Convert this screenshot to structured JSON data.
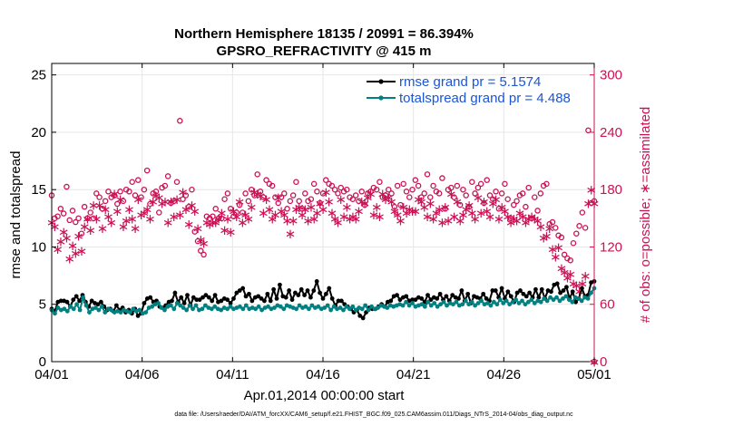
{
  "chart_data": {
    "type": "line",
    "title": "Northern Hemisphere 18135 / 20991 = 86.394%",
    "subtitle": "GPSRO_REFRACTIVITY @ 415 m",
    "xlabel": "Apr.01,2014 00:00:00 start",
    "ylabel_left": "rmse and totalspread",
    "ylabel_right": "# of obs: o=possible; ∗=assimilated",
    "x_ticks": [
      "04/01",
      "04/06",
      "04/11",
      "04/16",
      "04/21",
      "04/26",
      "05/01"
    ],
    "y_ticks_left": [
      "0",
      "5",
      "10",
      "15",
      "20",
      "25"
    ],
    "y_ticks_right": [
      "0",
      "60",
      "120",
      "180",
      "240",
      "300"
    ],
    "xlim_days": [
      0,
      30
    ],
    "ylim_left": [
      0,
      26
    ],
    "ylim_right": [
      0,
      312
    ],
    "grid": true,
    "legend_position": "top-right",
    "footer": "data file: /Users/raeder/DAI/ATM_forcXX/CAM6_setup/f.e21.FHIST_BGC.f09_025.CAM6assim.011/Diags_NTrS_2014-04/obs_diag_output.nc",
    "series": [
      {
        "name": "rmse grand pr = 5.1574",
        "color": "#000000",
        "axis": "left",
        "values": [
          4.6,
          4.4,
          5.2,
          5.3,
          5.3,
          5.2,
          4.8,
          5.4,
          5.7,
          5.3,
          5.8,
          5.2,
          4.8,
          5.3,
          5.1,
          5.0,
          5.2,
          4.8,
          4.5,
          4.6,
          4.4,
          4.9,
          4.5,
          4.7,
          4.3,
          4.5,
          4.2,
          4.6,
          4.0,
          4.2,
          5.1,
          5.5,
          5.6,
          5.2,
          5.3,
          4.8,
          4.7,
          4.9,
          5.2,
          5.3,
          6.0,
          5.2,
          5.6,
          5.1,
          5.8,
          4.9,
          5.6,
          5.4,
          5.4,
          5.6,
          5.8,
          5.6,
          5.3,
          5.8,
          5.2,
          5.3,
          5.5,
          5.4,
          5.1,
          5.5,
          6.0,
          6.2,
          6.4,
          5.7,
          5.9,
          5.3,
          5.6,
          5.7,
          5.5,
          5.3,
          5.9,
          5.3,
          6.3,
          5.5,
          6.7,
          5.7,
          5.6,
          6.2,
          5.4,
          6.0,
          5.8,
          6.3,
          5.8,
          6.2,
          5.6,
          6.2,
          7.0,
          6.0,
          5.5,
          5.9,
          6.4,
          5.5,
          4.9,
          5.3,
          5.3,
          5.0,
          4.8,
          4.6,
          4.3,
          4.5,
          4.0,
          3.8,
          4.3,
          4.7,
          4.6,
          4.6,
          4.8,
          5.0,
          4.8,
          5.2,
          5.3,
          5.7,
          5.8,
          5.4,
          5.6,
          5.7,
          5.3,
          5.4,
          5.4,
          5.6,
          5.5,
          5.2,
          5.8,
          5.4,
          5.6,
          5.5,
          5.9,
          5.4,
          5.7,
          5.3,
          5.8,
          5.6,
          5.5,
          6.2,
          5.3,
          5.9,
          5.1,
          5.7,
          5.6,
          5.5,
          5.9,
          5.5,
          5.3,
          6.2,
          6.2,
          5.6,
          6.4,
          5.5,
          6.1,
          5.7,
          5.2,
          6.0,
          6.2,
          5.9,
          5.7,
          6.0,
          5.6,
          6.3,
          5.6,
          6.3,
          5.5,
          6.2,
          6.1,
          6.7,
          6.8,
          6.0,
          6.2,
          6.5,
          5.5,
          6.1,
          5.2,
          5.5,
          6.4,
          5.7,
          5.8,
          6.9,
          7.0
        ]
      },
      {
        "name": "totalspread grand pr = 4.488",
        "color": "#008080",
        "axis": "left",
        "values": [
          4.5,
          4.2,
          4.7,
          4.5,
          4.6,
          4.4,
          4.8,
          4.6,
          5.0,
          4.5,
          5.6,
          4.9,
          4.3,
          4.6,
          4.7,
          4.5,
          4.8,
          4.3,
          4.6,
          4.5,
          4.3,
          4.4,
          4.3,
          4.5,
          4.4,
          4.3,
          4.6,
          4.4,
          4.5,
          4.2,
          4.3,
          4.7,
          4.8,
          5.0,
          5.1,
          4.7,
          4.5,
          4.8,
          4.9,
          4.6,
          5.1,
          4.9,
          4.7,
          4.5,
          4.9,
          4.6,
          4.9,
          4.5,
          4.6,
          4.9,
          4.7,
          4.6,
          4.8,
          4.6,
          4.5,
          4.7,
          4.6,
          4.8,
          4.6,
          4.7,
          4.8,
          4.6,
          4.9,
          4.6,
          4.7,
          4.6,
          4.8,
          4.5,
          4.7,
          4.8,
          4.6,
          4.7,
          4.9,
          4.8,
          4.6,
          4.9,
          4.8,
          4.7,
          4.6,
          4.9,
          4.7,
          4.8,
          4.6,
          4.9,
          4.7,
          4.8,
          4.6,
          4.7,
          4.9,
          4.5,
          4.8,
          4.6,
          4.7,
          4.5,
          4.8,
          4.6,
          4.8,
          4.5,
          4.7,
          4.6,
          4.9,
          4.5,
          4.8,
          4.6,
          4.7,
          4.9,
          4.8,
          4.7,
          4.9,
          4.8,
          4.9,
          5.0,
          4.9,
          5.2,
          4.9,
          5.1,
          4.8,
          4.9,
          5.0,
          4.8,
          5.2,
          4.9,
          5.1,
          4.8,
          5.0,
          5.2,
          4.9,
          5.1,
          5.0,
          5.2,
          4.9,
          5.0,
          5.3,
          5.0,
          5.2,
          4.9,
          5.1,
          5.3,
          5.0,
          5.1,
          4.9,
          5.2,
          5.0,
          5.4,
          5.1,
          5.3,
          5.0,
          5.2,
          5.4,
          5.1,
          5.3,
          5.0,
          5.2,
          5.4,
          5.1,
          5.3,
          5.2,
          5.5,
          5.3,
          5.6,
          5.4,
          5.6,
          5.3,
          5.5,
          5.7,
          5.4,
          5.2,
          5.6,
          5.5,
          5.3,
          5.6,
          5.5,
          6.0,
          6.4
        ]
      },
      {
        "name": "possible",
        "color": "#cc1155",
        "axis": "right",
        "marker": "o",
        "values": [
          174,
          150,
          152,
          160,
          155,
          183,
          148,
          158,
          146,
          150,
          134,
          162,
          150,
          156,
          150,
          176,
          172,
          160,
          168,
          178,
          172,
          174,
          165,
          178,
          168,
          180,
          178,
          188,
          174,
          190,
          172,
          180,
          200,
          165,
          176,
          178,
          156,
          182,
          184,
          194,
          166,
          168,
          188,
          252,
          170,
          174,
          162,
          180,
          136,
          126,
          116,
          112,
          152,
          150,
          152,
          160,
          150,
          150,
          170,
          176,
          160,
          152,
          156,
          164,
          156,
          176,
          168,
          180,
          174,
          196,
          178,
          172,
          190,
          186,
          184,
          172,
          166,
          172,
          176,
          160,
          168,
          174,
          188,
          168,
          160,
          176,
          168,
          170,
          186,
          178,
          166,
          176,
          190,
          186,
          184,
          180,
          176,
          182,
          178,
          180,
          172,
          170,
          174,
          168,
          178,
          164,
          176,
          178,
          182,
          180,
          188,
          172,
          174,
          180,
          176,
          162,
          184,
          164,
          186,
          178,
          172,
          180,
          190,
          184,
          172,
          176,
          196,
          172,
          184,
          178,
          176,
          192,
          160,
          180,
          182,
          172,
          184,
          164,
          180,
          174,
          162,
          188,
          176,
          182,
          186,
          166,
          190,
          174,
          170,
          178,
          160,
          176,
          186,
          170,
          150,
          164,
          168,
          174,
          176,
          162,
          182,
          150,
          172,
          158,
          176,
          184,
          186,
          144,
          146,
          140,
          132,
          130,
          112,
          108,
          106,
          124,
          134,
          142,
          156,
          140,
          242,
          166,
          168
        ]
      },
      {
        "name": "assimilated",
        "color": "#cc1155",
        "axis": "right",
        "marker": "*",
        "values": [
          146,
          142,
          118,
          126,
          136,
          130,
          108,
          122,
          114,
          132,
          116,
          142,
          150,
          138,
          164,
          150,
          164,
          140,
          160,
          152,
          146,
          176,
          158,
          170,
          142,
          148,
          160,
          150,
          140,
          170,
          154,
          156,
          160,
          150,
          168,
          174,
          172,
          166,
          168,
          146,
          168,
          152,
          170,
          154,
          178,
          160,
          144,
          164,
          158,
          140,
          128,
          124,
          146,
          144,
          146,
          146,
          150,
          156,
          138,
          150,
          136,
          158,
          152,
          168,
          146,
          154,
          150,
          162,
          178,
          176,
          174,
          156,
          170,
          160,
          150,
          154,
          172,
          158,
          154,
          148,
          134,
          148,
          160,
          162,
          154,
          160,
          148,
          162,
          150,
          156,
          166,
          160,
          178,
          168,
          156,
          150,
          146,
          170,
          152,
          162,
          150,
          152,
          150,
          158,
          168,
          166,
          172,
          176,
          154,
          162,
          152,
          176,
          170,
          172,
          168,
          158,
          154,
          148,
          162,
          156,
          160,
          158,
          158,
          170,
          168,
          162,
          152,
          166,
          150,
          156,
          160,
          146,
          162,
          148,
          176,
          152,
          168,
          148,
          154,
          160,
          164,
          156,
          150,
          172,
          156,
          168,
          158,
          152,
          166,
          170,
          150,
          162,
          158,
          152,
          146,
          150,
          148,
          156,
          152,
          146,
          150,
          152,
          150,
          148,
          142,
          130,
          132,
          140,
          118,
          110,
          120,
          98,
          94,
          88,
          92,
          82,
          80,
          74,
          82,
          90,
          166,
          180,
          166
        ]
      }
    ]
  }
}
